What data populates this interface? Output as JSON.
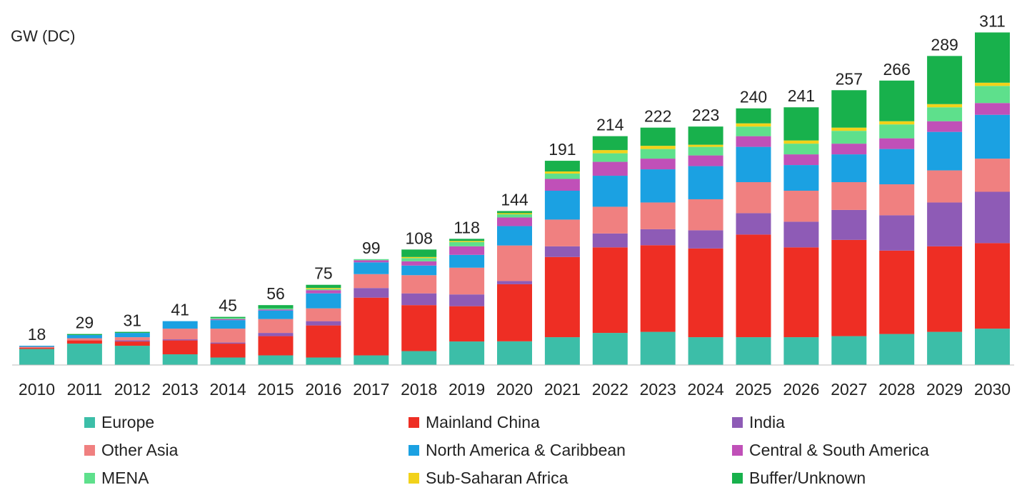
{
  "chart_data": {
    "type": "bar",
    "stacked": true,
    "ylabel": "GW (DC)",
    "ylim": [
      0,
      320
    ],
    "categories": [
      "2010",
      "2011",
      "2012",
      "2013",
      "2014",
      "2015",
      "2016",
      "2017",
      "2018",
      "2019",
      "2020",
      "2021",
      "2022",
      "2023",
      "2024",
      "2025",
      "2026",
      "2027",
      "2028",
      "2029",
      "2030"
    ],
    "totals": [
      18,
      29,
      31,
      41,
      45,
      56,
      75,
      99,
      108,
      118,
      144,
      191,
      214,
      222,
      223,
      240,
      241,
      257,
      266,
      289,
      311
    ],
    "series": [
      {
        "name": "Europe",
        "color": "#3cbea8",
        "values": [
          15,
          20,
          18,
          10,
          7,
          9,
          7,
          9,
          13,
          22,
          22,
          26,
          30,
          31,
          26,
          26,
          26,
          27,
          29,
          31,
          34
        ]
      },
      {
        "name": "Mainland China",
        "color": "#ee2e24",
        "values": [
          1,
          3,
          4,
          13,
          13,
          18,
          30,
          54,
          43,
          33,
          53,
          75,
          80,
          81,
          83,
          96,
          84,
          90,
          78,
          80,
          80
        ]
      },
      {
        "name": "India",
        "color": "#8e5bb6",
        "values": [
          0,
          0,
          1,
          1,
          1,
          3,
          4,
          9,
          11,
          11,
          3,
          10,
          13,
          15,
          17,
          20,
          24,
          28,
          33,
          41,
          48
        ]
      },
      {
        "name": "Other Asia",
        "color": "#f08080",
        "values": [
          1,
          2,
          3,
          10,
          13,
          13,
          12,
          13,
          17,
          25,
          33,
          25,
          25,
          25,
          29,
          29,
          29,
          26,
          29,
          30,
          31
        ]
      },
      {
        "name": "North America & Caribbean",
        "color": "#1ba1e2",
        "values": [
          1,
          3,
          4,
          7,
          8,
          8,
          14,
          11,
          9,
          12,
          18,
          27,
          29,
          31,
          31,
          33,
          24,
          26,
          33,
          36,
          41
        ]
      },
      {
        "name": "Central & South America",
        "color": "#c050b8",
        "values": [
          0,
          0,
          0,
          0,
          1,
          1,
          3,
          2,
          4,
          8,
          8,
          11,
          13,
          10,
          10,
          10,
          10,
          10,
          10,
          10,
          11
        ]
      },
      {
        "name": "MENA",
        "color": "#5ee08c",
        "values": [
          0,
          0,
          0,
          0,
          1,
          1,
          1,
          1,
          3,
          4,
          3,
          5,
          8,
          9,
          8,
          9,
          10,
          12,
          13,
          13,
          16
        ]
      },
      {
        "name": "Sub-Saharan Africa",
        "color": "#f2d21a",
        "values": [
          0,
          0,
          0,
          0,
          0,
          0,
          1,
          0,
          1,
          1,
          1,
          2,
          3,
          3,
          2,
          3,
          3,
          3,
          3,
          3,
          3
        ]
      },
      {
        "name": "Buffer/Unknown",
        "color": "#18b14c",
        "values": [
          0,
          1,
          1,
          0,
          1,
          3,
          3,
          0,
          7,
          2,
          2,
          10,
          13,
          17,
          17,
          14,
          31,
          35,
          38,
          45,
          47
        ]
      }
    ],
    "legend_position": "bottom",
    "grid": false
  }
}
